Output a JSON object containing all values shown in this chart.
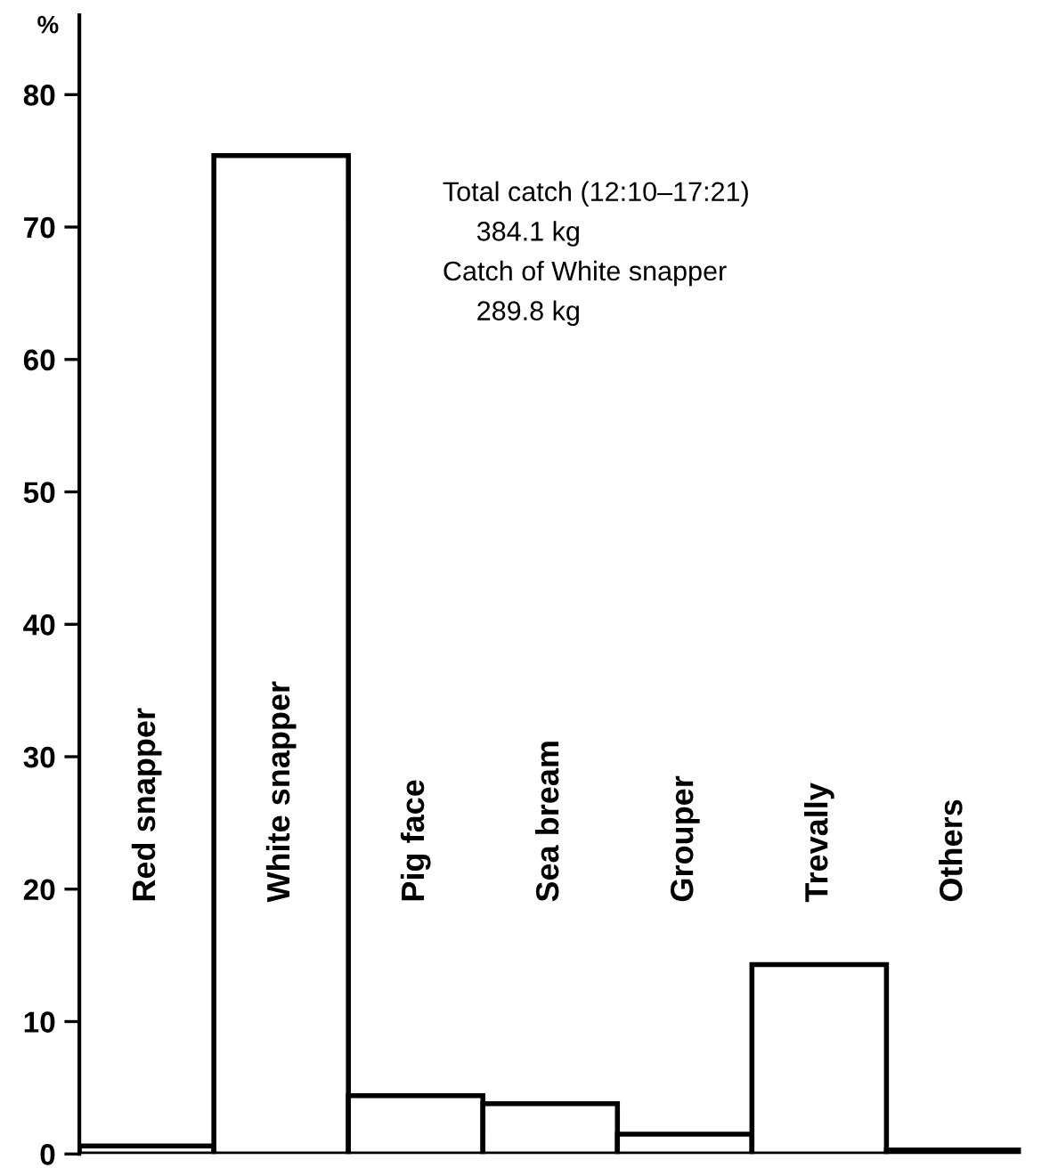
{
  "chart_data": {
    "type": "bar",
    "ylabel": "%",
    "categories": [
      "Red snapper",
      "White snapper",
      "Pig face",
      "Sea bream",
      "Grouper",
      "Trevally",
      "Others"
    ],
    "values": [
      0.6,
      75.4,
      4.4,
      3.8,
      1.5,
      14.3,
      0.3
    ],
    "color": "#ffffff",
    "ylim": [
      0,
      86
    ],
    "yticks": [
      0,
      10,
      20,
      30,
      40,
      50,
      60,
      70,
      80
    ],
    "grid": false,
    "legend": false,
    "annotations": [
      "Total catch (12:10–17:21)",
      "384.1 kg",
      "Catch of White snapper",
      "289.8 kg"
    ]
  }
}
